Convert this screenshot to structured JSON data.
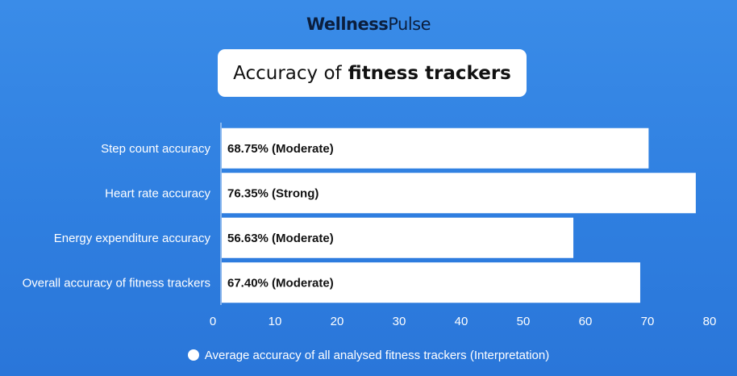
{
  "brand": {
    "part1": "Wellness",
    "part2": "Pulse"
  },
  "title": {
    "regular": "Accuracy of",
    "bold": "fitness trackers"
  },
  "legend": {
    "label": "Average accuracy of all analysed fitness trackers (Interpretation)"
  },
  "colors": {
    "background": "#3a8ce8",
    "bar": "#ffffff",
    "text_on_bar": "#111111"
  },
  "chart_data": {
    "type": "bar",
    "orientation": "horizontal",
    "categories": [
      "Step count accuracy",
      "Heart rate accuracy",
      "Energy expenditure accuracy",
      "Overall accuracy of fitness trackers"
    ],
    "values": [
      68.75,
      76.35,
      56.63,
      67.4
    ],
    "data_labels": [
      "68.75% (Moderate)",
      "76.35% (Strong)",
      "56.63% (Moderate)",
      "67.40% (Moderate)"
    ],
    "series": [
      {
        "name": "Average accuracy of all analysed fitness trackers (Interpretation)",
        "values": [
          68.75,
          76.35,
          56.63,
          67.4
        ]
      }
    ],
    "xlim": [
      0,
      80
    ],
    "xticks": [
      "0",
      "10",
      "20",
      "30",
      "40",
      "50",
      "60",
      "70",
      "80"
    ],
    "grid": false,
    "legend_position": "bottom"
  }
}
